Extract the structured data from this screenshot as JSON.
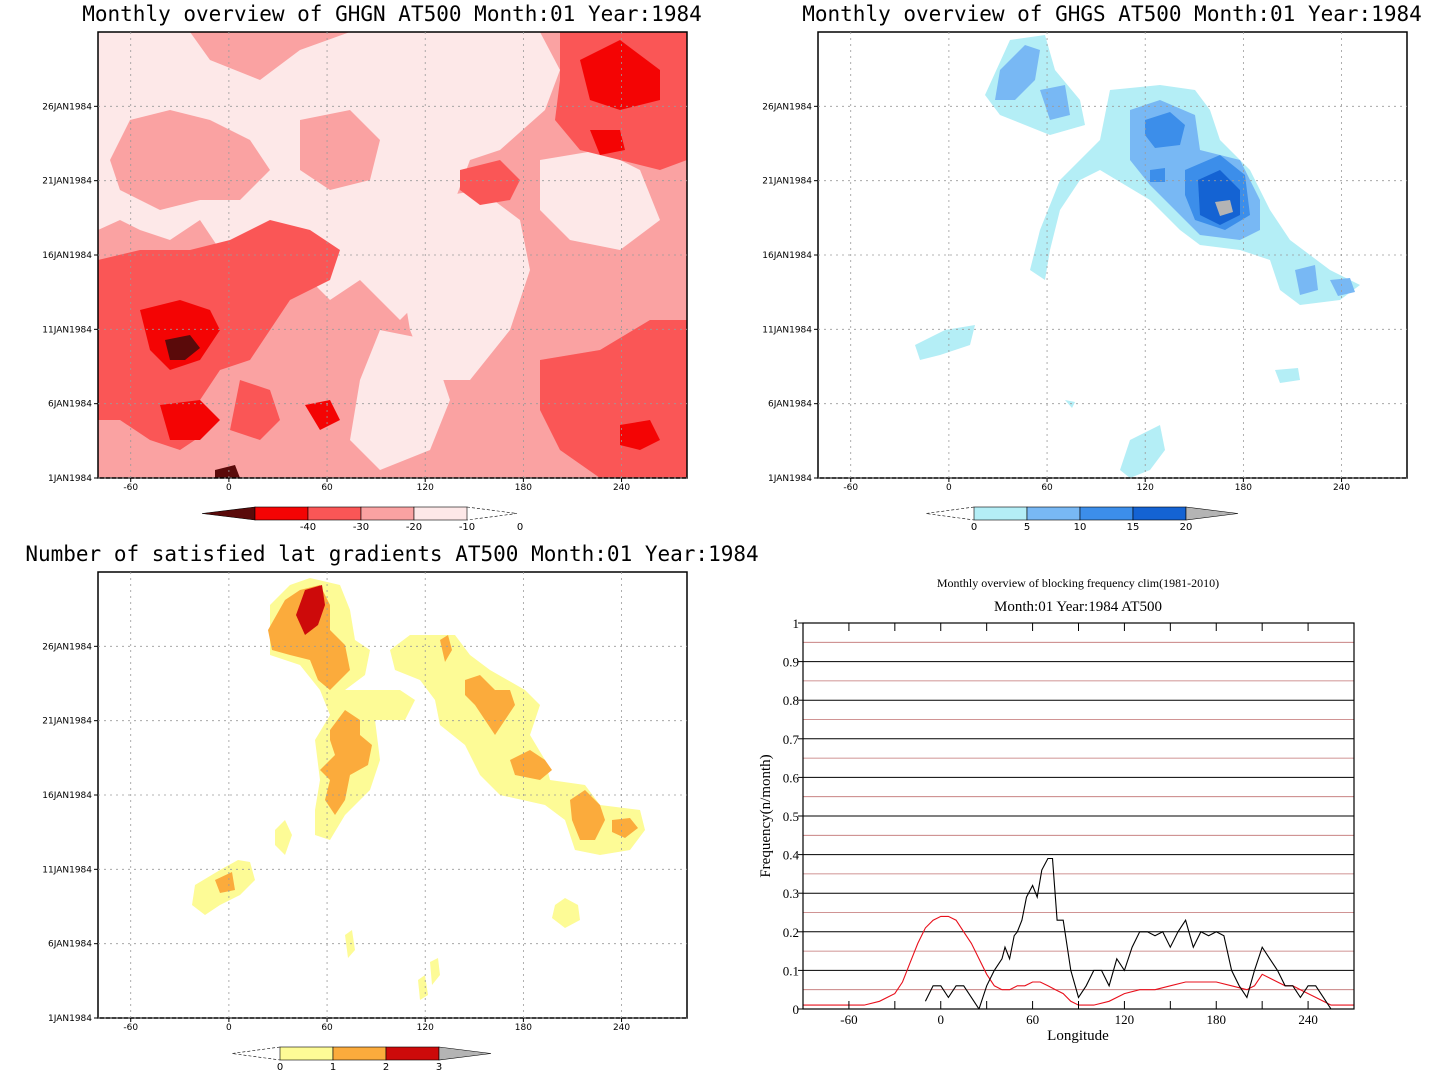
{
  "colors": {
    "ghgn": [
      "#5a0a0a",
      "#f40404",
      "#fa5656",
      "#faa2a2",
      "#fde8e8"
    ],
    "ghgs": [
      "#b4eef6",
      "#78b8f4",
      "#3c8eea",
      "#1463d3",
      "#b4b4b4"
    ],
    "sat": [
      "#fdfb96",
      "#fbab3c",
      "#cd0a0a",
      "#b4b4b4"
    ],
    "clim": "#e8101c",
    "obs": "#000000",
    "hline_major": "#000000",
    "hline_minor": "#c07070"
  },
  "chart_data": [
    {
      "id": "ghgn",
      "type": "heatmap",
      "title": "Monthly overview of GHGN AT500 Month:01 Year:1984",
      "xlabel": "",
      "ylabel": "",
      "xlim": [
        -80,
        280
      ],
      "ylim": [
        1,
        31
      ],
      "x_ticks": [
        "-60",
        "0",
        "60",
        "120",
        "180",
        "240"
      ],
      "y_ticks": [
        "1JAN1984",
        "6JAN1984",
        "11JAN1984",
        "16JAN1984",
        "21JAN1984",
        "26JAN1984"
      ],
      "legend": {
        "labels": [
          "-40",
          "-30",
          "-20",
          "-10",
          "0"
        ]
      },
      "field_description": "Shaded bands of negative values; deepest minimum near -40 around lon -30 on 10-11 Jan; lightest region near lon 120-180 mid-month",
      "bands": [
        -40,
        -30,
        -20,
        -10,
        0
      ]
    },
    {
      "id": "ghgs",
      "type": "heatmap",
      "title": "Monthly overview of GHGS AT500 Month:01 Year:1984",
      "xlabel": "",
      "ylabel": "",
      "xlim": [
        -80,
        280
      ],
      "ylim": [
        1,
        31
      ],
      "x_ticks": [
        "-60",
        "0",
        "60",
        "120",
        "180",
        "240"
      ],
      "y_ticks": [
        "1JAN1984",
        "6JAN1984",
        "11JAN1984",
        "16JAN1984",
        "21JAN1984",
        "26JAN1984"
      ],
      "legend": {
        "labels": [
          "0",
          "5",
          "10",
          "15",
          "20"
        ]
      },
      "bands": [
        0,
        5,
        10,
        15,
        20
      ]
    },
    {
      "id": "sat",
      "type": "heatmap",
      "title": "Number of satisfied lat gradients AT500 Month:01 Year:1984",
      "xlabel": "",
      "ylabel": "",
      "xlim": [
        -80,
        280
      ],
      "ylim": [
        1,
        31
      ],
      "x_ticks": [
        "-60",
        "0",
        "60",
        "120",
        "180",
        "240"
      ],
      "y_ticks": [
        "1JAN1984",
        "6JAN1984",
        "11JAN1984",
        "16JAN1984",
        "21JAN1984",
        "26JAN1984"
      ],
      "legend": {
        "labels": [
          "0",
          "1",
          "2",
          "3"
        ]
      },
      "bands": [
        0,
        1,
        2,
        3
      ]
    },
    {
      "id": "freq",
      "type": "line",
      "title": "Monthly overview of blocking frequency clim(1981-2010)",
      "subtitle": "Month:01 Year:1984  AT500",
      "xlabel": "Longitude",
      "ylabel": "Frequency(n/month)",
      "xlim": [
        -90,
        270
      ],
      "ylim": [
        0,
        1
      ],
      "x_ticks": [
        "-60",
        "0",
        "60",
        "120",
        "180",
        "240"
      ],
      "y_ticks": [
        "0",
        "0.1",
        "0.2",
        "0.3",
        "0.4",
        "0.5",
        "0.6",
        "0.7",
        "0.8",
        "0.9",
        "1"
      ],
      "series": [
        {
          "color_key": "clim",
          "x": [
            -90,
            -70,
            -50,
            -40,
            -30,
            -25,
            -20,
            -15,
            -10,
            -5,
            0,
            5,
            10,
            15,
            20,
            25,
            30,
            35,
            40,
            45,
            50,
            55,
            60,
            65,
            70,
            75,
            80,
            85,
            90,
            95,
            100,
            110,
            120,
            130,
            140,
            150,
            160,
            170,
            180,
            190,
            200,
            205,
            210,
            215,
            220,
            225,
            230,
            235,
            240,
            245,
            250,
            255,
            260,
            270
          ],
          "values": [
            0.01,
            0.01,
            0.01,
            0.02,
            0.04,
            0.07,
            0.12,
            0.17,
            0.21,
            0.23,
            0.24,
            0.24,
            0.23,
            0.2,
            0.17,
            0.13,
            0.09,
            0.06,
            0.05,
            0.05,
            0.06,
            0.06,
            0.07,
            0.07,
            0.06,
            0.05,
            0.04,
            0.02,
            0.01,
            0.01,
            0.01,
            0.02,
            0.04,
            0.05,
            0.05,
            0.06,
            0.07,
            0.07,
            0.07,
            0.06,
            0.05,
            0.06,
            0.09,
            0.08,
            0.07,
            0.06,
            0.06,
            0.05,
            0.04,
            0.03,
            0.02,
            0.01,
            0.01,
            0.01
          ]
        },
        {
          "color_key": "obs",
          "x": [
            -10,
            -5,
            0,
            5,
            10,
            15,
            20,
            25,
            30,
            35,
            40,
            42,
            45,
            48,
            50,
            53,
            56,
            60,
            63,
            66,
            70,
            73,
            76,
            80,
            85,
            90,
            95,
            100,
            105,
            110,
            115,
            120,
            125,
            130,
            135,
            140,
            145,
            150,
            155,
            160,
            165,
            170,
            175,
            180,
            185,
            190,
            195,
            200,
            205,
            210,
            215,
            220,
            225,
            230,
            235,
            240,
            245,
            250,
            255,
            260
          ],
          "values": [
            0.02,
            0.06,
            0.06,
            0.03,
            0.06,
            0.06,
            0.03,
            0.0,
            0.06,
            0.1,
            0.13,
            0.16,
            0.13,
            0.19,
            0.2,
            0.23,
            0.29,
            0.32,
            0.29,
            0.36,
            0.39,
            0.39,
            0.23,
            0.23,
            0.1,
            0.03,
            0.06,
            0.1,
            0.1,
            0.06,
            0.13,
            0.1,
            0.16,
            0.2,
            0.2,
            0.19,
            0.2,
            0.16,
            0.2,
            0.23,
            0.16,
            0.2,
            0.19,
            0.2,
            0.19,
            0.1,
            0.06,
            0.03,
            0.1,
            0.16,
            0.13,
            0.1,
            0.06,
            0.06,
            0.03,
            0.06,
            0.06,
            0.03,
            0.0,
            0.0
          ]
        }
      ]
    }
  ]
}
